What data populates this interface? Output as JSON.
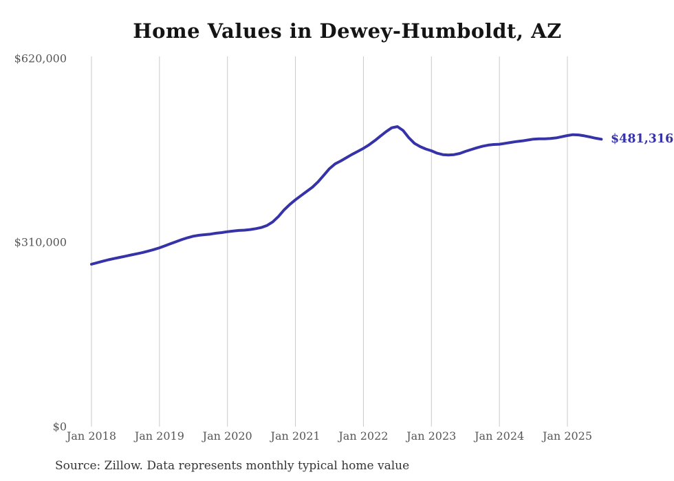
{
  "source_note": "Source: Zillow. Data represents monthly typical home value",
  "colors": {
    "line": "#3632a8",
    "grid": "#c9c9c9",
    "title": "#141414",
    "axis_label": "#565656",
    "end_label": "#3632a8",
    "background": "#ffffff"
  },
  "chart_data": {
    "type": "line",
    "title": "Home Values in Dewey-Humboldt, AZ",
    "xlabel": "",
    "ylabel": "",
    "ylim": [
      0,
      620000
    ],
    "grid": "vertical-only",
    "legend": "none",
    "y_tick_labels": [
      "$0",
      "$310,000",
      "$620,000"
    ],
    "y_tick_values": [
      0,
      310000,
      620000
    ],
    "x_tick_labels": [
      "Jan 2018",
      "Jan 2019",
      "Jan 2020",
      "Jan 2021",
      "Jan 2022",
      "Jan 2023",
      "Jan 2024",
      "Jan 2025"
    ],
    "x_tick_month_indices": [
      0,
      12,
      24,
      36,
      48,
      60,
      72,
      84
    ],
    "last_value": 481316,
    "last_value_label": "$481,316",
    "series": [
      {
        "name": "Monthly typical home value",
        "start_month": "Jan 2018",
        "end_month": "Jul 2025",
        "values": [
          272000,
          274500,
          277000,
          279500,
          281500,
          283500,
          285500,
          287500,
          289500,
          291500,
          294000,
          296500,
          299500,
          303000,
          306500,
          310000,
          313500,
          316500,
          319000,
          320500,
          321500,
          322500,
          324000,
          325000,
          326500,
          327500,
          328500,
          329000,
          330000,
          331500,
          333500,
          337000,
          343000,
          352000,
          363000,
          372000,
          380000,
          387000,
          394000,
          401000,
          410000,
          421000,
          432000,
          440000,
          445000,
          450500,
          456000,
          461000,
          466000,
          472000,
          479000,
          486500,
          494000,
          500500,
          502500,
          496000,
          484000,
          474500,
          469000,
          465000,
          462000,
          458000,
          455500,
          455000,
          455500,
          457500,
          461000,
          464000,
          467000,
          469500,
          471500,
          472500,
          473000,
          474500,
          476000,
          477500,
          478500,
          480000,
          481500,
          482000,
          482000,
          482500,
          483500,
          485500,
          487500,
          489000,
          488500,
          487000,
          485000,
          483000,
          481316
        ]
      }
    ]
  }
}
